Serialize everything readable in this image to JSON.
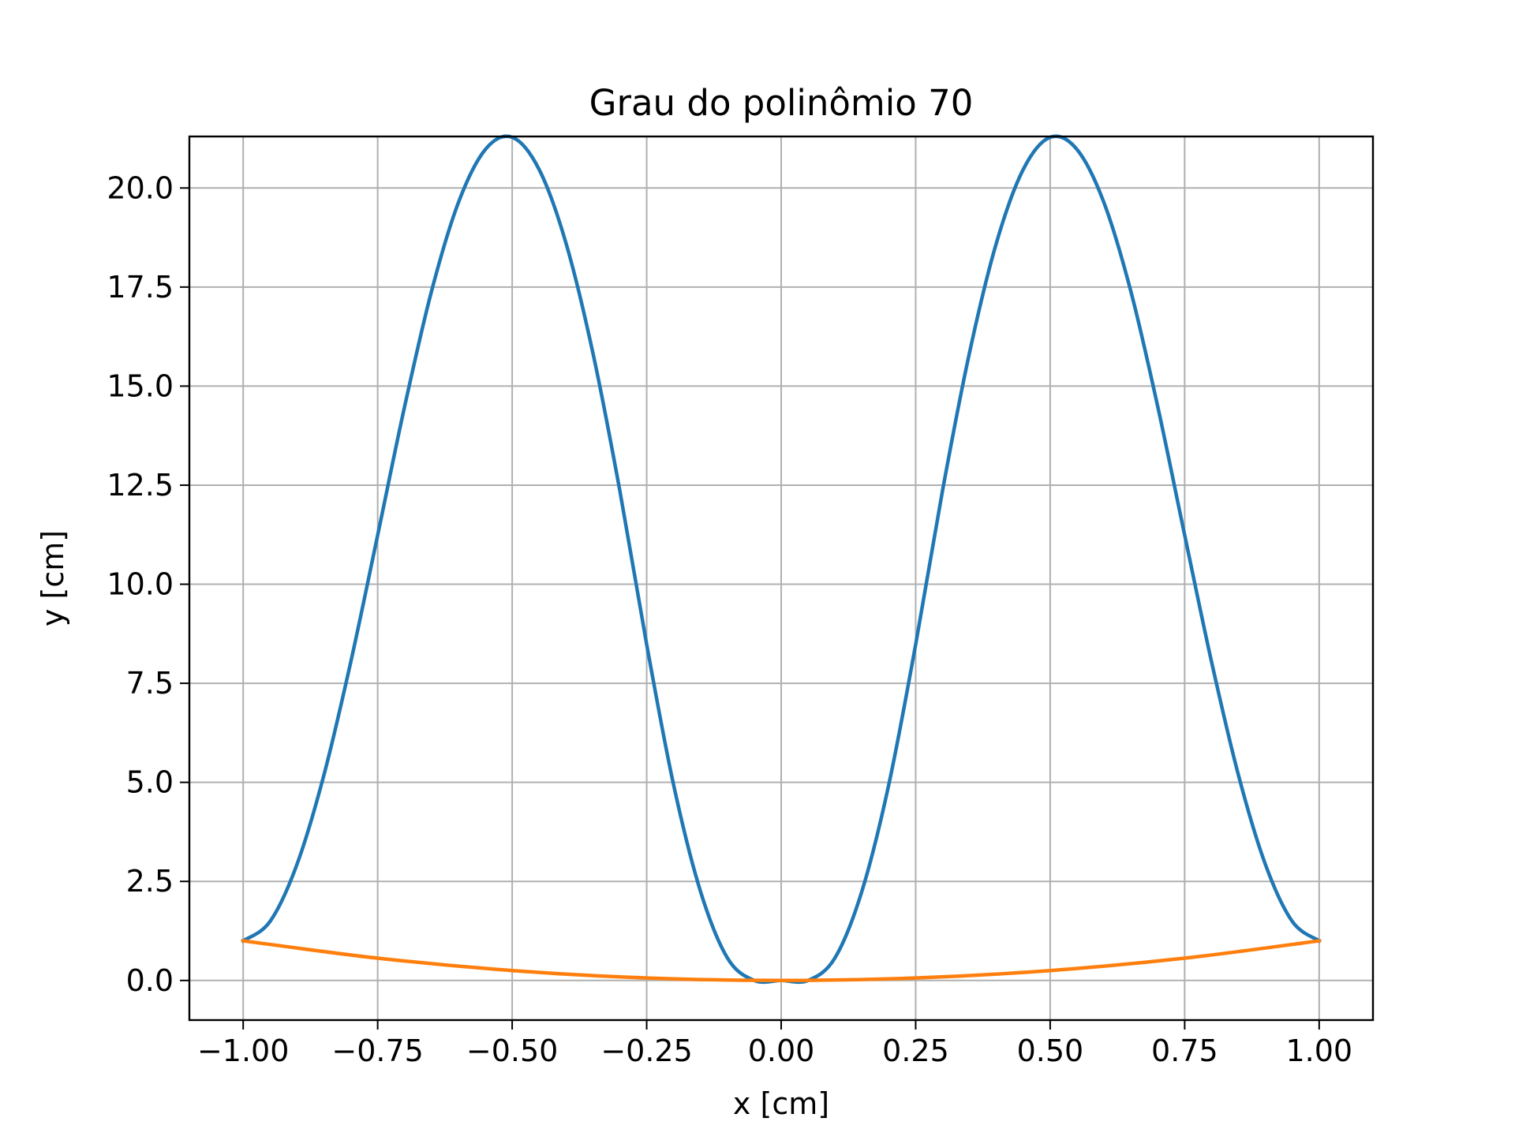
{
  "chart_data": {
    "type": "line",
    "title": "Grau do polinômio 70",
    "xlabel": "x [cm]",
    "ylabel": "y [cm]",
    "xlim": [
      -1.1,
      1.1
    ],
    "ylim": [
      -1.0,
      21.3
    ],
    "grid": true,
    "x_ticks": [
      -1.0,
      -0.75,
      -0.5,
      -0.25,
      0.0,
      0.25,
      0.5,
      0.75,
      1.0
    ],
    "x_tick_labels": [
      "−1.00",
      "−0.75",
      "−0.50",
      "−0.25",
      "0.00",
      "0.25",
      "0.50",
      "0.75",
      "1.00"
    ],
    "y_ticks": [
      0.0,
      2.5,
      5.0,
      7.5,
      10.0,
      12.5,
      15.0,
      17.5,
      20.0
    ],
    "y_tick_labels": [
      "0.0",
      "2.5",
      "5.0",
      "7.5",
      "10.0",
      "12.5",
      "15.0",
      "17.5",
      "20.0"
    ],
    "series": [
      {
        "color": "#1f77b4",
        "x": [
          -1.0,
          -0.95,
          -0.9,
          -0.85,
          -0.8,
          -0.75,
          -0.7,
          -0.65,
          -0.6,
          -0.55,
          -0.5,
          -0.45,
          -0.4,
          -0.35,
          -0.3,
          -0.25,
          -0.2,
          -0.15,
          -0.1,
          -0.05,
          0.0,
          0.05,
          0.1,
          0.15,
          0.2,
          0.25,
          0.3,
          0.35,
          0.4,
          0.45,
          0.5,
          0.55,
          0.6,
          0.65,
          0.7,
          0.75,
          0.8,
          0.85,
          0.9,
          0.95,
          1.0
        ],
        "y": [
          1.0,
          1.49,
          2.93,
          5.18,
          8.04,
          11.24,
          14.48,
          17.39,
          19.63,
          20.97,
          21.28,
          20.47,
          18.61,
          15.84,
          12.37,
          8.48,
          4.94,
          2.25,
          0.57,
          0.0,
          0.0,
          0.0,
          0.57,
          2.25,
          4.94,
          8.48,
          12.37,
          15.84,
          18.61,
          20.47,
          21.28,
          20.97,
          19.63,
          17.39,
          14.48,
          11.24,
          8.04,
          5.18,
          2.93,
          1.49,
          1.0
        ]
      },
      {
        "color": "#ff7f0e",
        "x": [
          -1.0,
          -0.75,
          -0.5,
          -0.25,
          0.0,
          0.25,
          0.5,
          0.75,
          1.0
        ],
        "y": [
          1.0,
          0.5625,
          0.25,
          0.0625,
          0.0,
          0.0625,
          0.25,
          0.5625,
          1.0
        ]
      }
    ]
  }
}
